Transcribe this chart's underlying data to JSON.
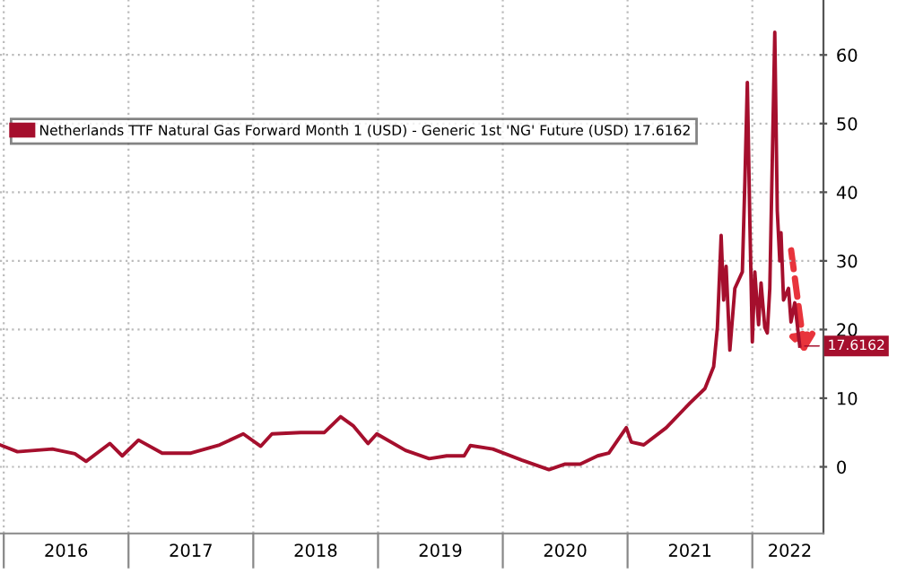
{
  "chart_data": {
    "type": "line",
    "x": [
      2015.97,
      2016.11,
      2016.39,
      2016.57,
      2016.66,
      2016.85,
      2016.95,
      2017.08,
      2017.27,
      2017.5,
      2017.73,
      2017.92,
      2018.06,
      2018.15,
      2018.38,
      2018.57,
      2018.7,
      2018.8,
      2018.92,
      2018.99,
      2019.22,
      2019.41,
      2019.55,
      2019.69,
      2019.74,
      2019.92,
      2020.15,
      2020.37,
      2020.5,
      2020.62,
      2020.76,
      2020.85,
      2020.99,
      2021.03,
      2021.13,
      2021.31,
      2021.5,
      2021.62,
      2021.69,
      2021.72,
      2021.75,
      2021.77,
      2021.79,
      2021.82,
      2021.86,
      2021.92,
      2021.94,
      2021.96,
      2021.98,
      2022.0,
      2022.02,
      2022.05,
      2022.07,
      2022.1,
      2022.12,
      2022.14,
      2022.18,
      2022.2,
      2022.22,
      2022.23,
      2022.25,
      2022.29,
      2022.31,
      2022.34,
      2022.38
    ],
    "series": [
      {
        "name": "Netherlands TTF Natural Gas Forward Month 1 (USD) - Generic 1st 'NG' Future (USD) 17.6162",
        "color": "#a50f2d",
        "values": [
          3.2,
          2.2,
          2.6,
          1.9,
          0.8,
          3.4,
          1.6,
          3.9,
          2.0,
          2.0,
          3.2,
          4.8,
          3.0,
          4.8,
          5.0,
          5.0,
          7.3,
          6.0,
          3.4,
          4.8,
          2.4,
          1.2,
          1.6,
          1.6,
          3.1,
          2.6,
          1.0,
          -0.4,
          0.4,
          0.4,
          1.6,
          2.0,
          5.7,
          3.6,
          3.2,
          5.7,
          9.3,
          11.4,
          14.6,
          20.3,
          33.7,
          24.3,
          29.2,
          17.0,
          26.0,
          28.4,
          41.4,
          56.0,
          35.7,
          18.2,
          28.4,
          20.7,
          26.8,
          20.3,
          19.5,
          26.0,
          63.3,
          37.3,
          30.0,
          34.1,
          24.3,
          26.0,
          21.1,
          23.9,
          17.6
        ]
      }
    ],
    "xlim": [
      2015.97,
      2022.57
    ],
    "xticks": [
      {
        "value": 2016,
        "label": null
      },
      {
        "value": 2016.5,
        "label": "2016"
      },
      {
        "value": 2017,
        "label": null
      },
      {
        "value": 2017.5,
        "label": "2017"
      },
      {
        "value": 2018,
        "label": null
      },
      {
        "value": 2018.5,
        "label": "2018"
      },
      {
        "value": 2019,
        "label": null
      },
      {
        "value": 2019.5,
        "label": "2019"
      },
      {
        "value": 2020,
        "label": null
      },
      {
        "value": 2020.5,
        "label": "2020"
      },
      {
        "value": 2021,
        "label": null
      },
      {
        "value": 2021.5,
        "label": "2021"
      },
      {
        "value": 2022,
        "label": null
      },
      {
        "value": 2022.3,
        "label": "2022"
      }
    ],
    "ylim": [
      -9.7,
      68
    ],
    "yticks": [
      0,
      10,
      20,
      30,
      40,
      50,
      60
    ],
    "annotations": [
      {
        "text": "17.6162",
        "x": 2022.38,
        "y": 17.6
      }
    ],
    "grid": true,
    "legend": "top left"
  }
}
